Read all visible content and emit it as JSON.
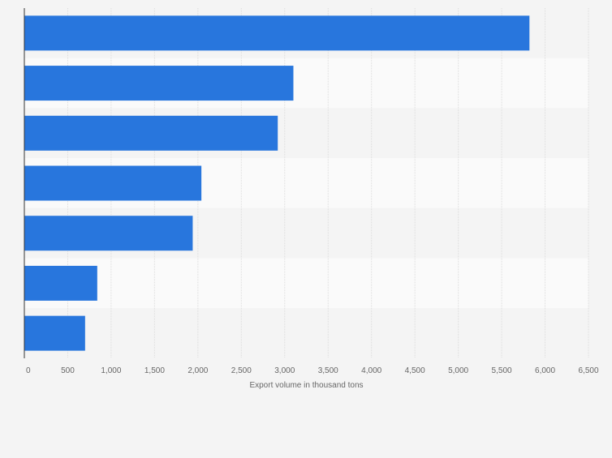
{
  "chart_data": {
    "type": "bar",
    "orientation": "horizontal",
    "categories": [
      "",
      "",
      "",
      "",
      "",
      "",
      ""
    ],
    "values": [
      5820,
      3100,
      2920,
      2040,
      1940,
      840,
      700
    ],
    "xlabel": "Export volume in thousand tons",
    "ylabel": "",
    "xlim": [
      0,
      6500
    ],
    "ticks": [
      0,
      500,
      1000,
      1500,
      2000,
      2500,
      3000,
      3500,
      4000,
      4500,
      5000,
      5500,
      6000,
      6500
    ],
    "tick_labels": [
      "0",
      "500",
      "1,000",
      "1,500",
      "2,000",
      "2,500",
      "3,000",
      "3,500",
      "4,000",
      "4,500",
      "5,000",
      "5,500",
      "6,000",
      "6,500"
    ],
    "grid": true,
    "bar_color": "#2876dd",
    "row_band_colors": [
      "#f4f4f4",
      "#fafafa"
    ]
  }
}
